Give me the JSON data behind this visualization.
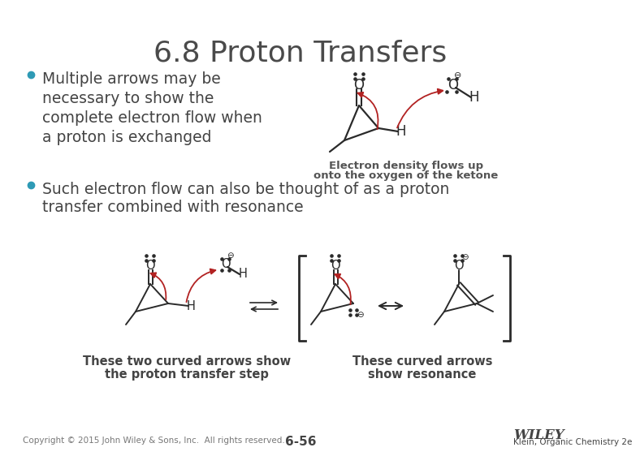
{
  "title": "6.8 Proton Transfers",
  "title_fontsize": 26,
  "title_color": "#4a4a4a",
  "bg_color": "#ffffff",
  "bullet1_lines": [
    "Multiple arrows may be",
    "necessary to show the",
    "complete electron flow when",
    "a proton is exchanged"
  ],
  "bullet2_lines": [
    "Such electron flow can also be thought of as a proton",
    "transfer combined with resonance"
  ],
  "bullet_color": "#2e9ab5",
  "text_color": "#444444",
  "text_fontsize": 13.5,
  "caption1": [
    "Electron density flows up",
    "onto the oxygen of the ketone"
  ],
  "caption_fontsize": 9.5,
  "caption_color": "#555555",
  "label1": [
    "These two curved arrows show",
    "the proton transfer step"
  ],
  "label2": [
    "These curved arrows",
    "show resonance"
  ],
  "label_fontsize": 10.5,
  "label_color": "#444444",
  "footer_copyright": "Copyright © 2015 John Wiley & Sons, Inc.  All rights reserved.",
  "footer_page": "6-56",
  "footer_pub": "Klein, Organic Chemistry 2e",
  "footer_wiley": "WILEY",
  "footer_fontsize": 7.5,
  "arrow_color": "#b22222",
  "bond_color": "#2a2a2a",
  "lp_color": "#2a2a2a"
}
